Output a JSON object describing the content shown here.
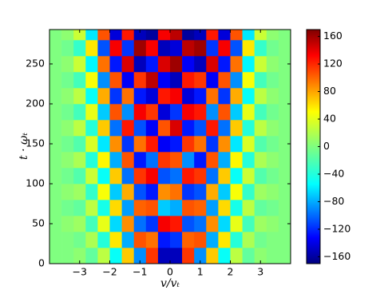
{
  "chart_data": {
    "type": "heatmap",
    "xlabel": "v/vₜ",
    "ylabel": "t · ωₜ",
    "xlim": [
      -4,
      4
    ],
    "ylim": [
      0,
      293
    ],
    "xticks": [
      {
        "value": -3,
        "label": "−3"
      },
      {
        "value": -2,
        "label": "−2"
      },
      {
        "value": -1,
        "label": "−1"
      },
      0,
      1,
      2,
      3
    ],
    "yticks": [
      0,
      50,
      100,
      150,
      200,
      250
    ],
    "zlim": [
      -170,
      170
    ],
    "zticks": [
      {
        "value": -160,
        "label": "−160"
      },
      {
        "value": -120,
        "label": "−120"
      },
      {
        "value": -80,
        "label": "−80"
      },
      {
        "value": -40,
        "label": "−40"
      },
      0,
      40,
      80,
      120,
      160
    ],
    "colormap": "jet",
    "xbins": [
      -4,
      -3.6,
      -3.2,
      -2.8,
      -2.4,
      -2,
      -1.6,
      -1.2,
      -0.8,
      -0.4,
      0,
      0.4,
      0.8,
      1.2,
      1.6,
      2,
      2.4,
      2.8,
      3.2,
      3.6,
      4
    ],
    "ybins": [
      0,
      20,
      40,
      60,
      80,
      100,
      120,
      140,
      160,
      180,
      200,
      220,
      240,
      260,
      280,
      293
    ],
    "z": [
      [
        0,
        0,
        5,
        -10,
        20,
        -40,
        60,
        -80,
        110,
        -150,
        -150,
        110,
        -80,
        60,
        -40,
        20,
        -10,
        5,
        0,
        0
      ],
      [
        0,
        0,
        -5,
        15,
        -30,
        50,
        -70,
        100,
        90,
        -120,
        -110,
        95,
        100,
        -70,
        50,
        -30,
        15,
        -5,
        0,
        0
      ],
      [
        0,
        5,
        10,
        -20,
        35,
        -55,
        80,
        -90,
        -110,
        130,
        120,
        -100,
        -90,
        80,
        -55,
        35,
        -20,
        10,
        5,
        0
      ],
      [
        0,
        -5,
        -10,
        20,
        -35,
        55,
        -75,
        95,
        100,
        -60,
        -70,
        100,
        95,
        -75,
        55,
        -35,
        20,
        -10,
        -5,
        0
      ],
      [
        0,
        5,
        10,
        -25,
        40,
        -60,
        70,
        -100,
        -120,
        80,
        90,
        -110,
        -100,
        70,
        -60,
        40,
        -25,
        10,
        5,
        0
      ],
      [
        0,
        -5,
        -15,
        25,
        -40,
        60,
        -90,
        110,
        130,
        -100,
        -90,
        120,
        110,
        -90,
        60,
        -40,
        25,
        -15,
        -5,
        0
      ],
      [
        0,
        5,
        15,
        -30,
        45,
        -70,
        100,
        -120,
        -90,
        110,
        100,
        -80,
        -120,
        100,
        -70,
        45,
        -30,
        15,
        5,
        0
      ],
      [
        0,
        -5,
        -15,
        30,
        -50,
        80,
        -110,
        90,
        120,
        -130,
        -120,
        110,
        90,
        -110,
        80,
        -50,
        30,
        -15,
        -5,
        0
      ],
      [
        0,
        5,
        20,
        -30,
        60,
        -90,
        120,
        -100,
        -130,
        100,
        140,
        -120,
        -100,
        120,
        -90,
        60,
        -30,
        20,
        5,
        0
      ],
      [
        0,
        -5,
        -20,
        35,
        -60,
        100,
        -80,
        130,
        110,
        -140,
        -110,
        130,
        120,
        -80,
        100,
        -60,
        35,
        -20,
        -5,
        0
      ],
      [
        0,
        5,
        20,
        -40,
        70,
        -110,
        90,
        -120,
        -140,
        120,
        130,
        -140,
        -120,
        90,
        -110,
        70,
        -40,
        20,
        5,
        0
      ],
      [
        0,
        -5,
        -20,
        40,
        -80,
        100,
        -130,
        110,
        150,
        -130,
        -150,
        120,
        110,
        -130,
        100,
        -80,
        40,
        -20,
        -5,
        0
      ],
      [
        0,
        5,
        25,
        -45,
        90,
        -120,
        140,
        -150,
        -120,
        140,
        160,
        -130,
        -150,
        140,
        -120,
        90,
        -45,
        25,
        5,
        0
      ],
      [
        0,
        -5,
        -25,
        50,
        -100,
        130,
        -110,
        160,
        130,
        -150,
        -140,
        150,
        160,
        -110,
        130,
        -100,
        50,
        -25,
        -5,
        0
      ],
      [
        0,
        5,
        25,
        -50,
        100,
        -140,
        120,
        -150,
        -160,
        130,
        150,
        -160,
        -150,
        120,
        -140,
        100,
        -50,
        25,
        5,
        0
      ]
    ]
  }
}
